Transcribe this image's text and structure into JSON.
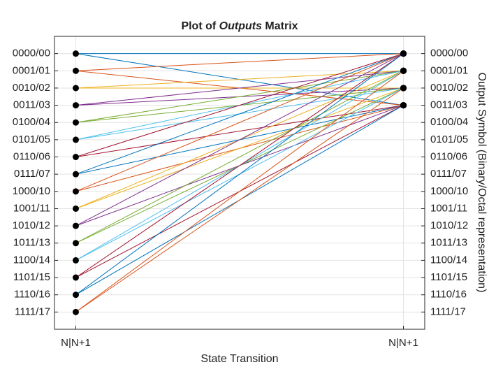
{
  "chart_data": {
    "type": "transition",
    "title": [
      "Plot of ",
      "Outputs",
      " Matrix"
    ],
    "xlabel": "State Transition",
    "y2label": "Output Symbol (Binary/Octal representation)",
    "xlim": [
      0.935,
      2.065
    ],
    "xticks": [
      {
        "value": 1,
        "label": "N|N+1"
      },
      {
        "value": 2,
        "label": "N|N+1"
      }
    ],
    "ylim": [
      -1,
      16
    ],
    "y_reversed": true,
    "yticks": [
      {
        "value": 0,
        "label": "0000/00"
      },
      {
        "value": 1,
        "label": "0001/01"
      },
      {
        "value": 2,
        "label": "0010/02"
      },
      {
        "value": 3,
        "label": "0011/03"
      },
      {
        "value": 4,
        "label": "0100/04"
      },
      {
        "value": 5,
        "label": "0101/05"
      },
      {
        "value": 6,
        "label": "0110/06"
      },
      {
        "value": 7,
        "label": "0111/07"
      },
      {
        "value": 8,
        "label": "1000/10"
      },
      {
        "value": 9,
        "label": "1001/11"
      },
      {
        "value": 10,
        "label": "1010/12"
      },
      {
        "value": 11,
        "label": "1011/13"
      },
      {
        "value": 12,
        "label": "1100/14"
      },
      {
        "value": 13,
        "label": "1101/15"
      },
      {
        "value": 14,
        "label": "1110/16"
      },
      {
        "value": 15,
        "label": "1111/17"
      }
    ],
    "y2lim": [
      -1,
      16
    ],
    "y2ticks": [
      {
        "value": 0,
        "label": "0000/00"
      },
      {
        "value": 1,
        "label": "0001/01"
      },
      {
        "value": 2,
        "label": "0010/02"
      },
      {
        "value": 3,
        "label": "0011/03"
      },
      {
        "value": 4,
        "label": "0100/04"
      },
      {
        "value": 5,
        "label": "0101/05"
      },
      {
        "value": 6,
        "label": "0110/06"
      },
      {
        "value": 7,
        "label": "0111/07"
      },
      {
        "value": 8,
        "label": "1000/10"
      },
      {
        "value": 9,
        "label": "1001/11"
      },
      {
        "value": 10,
        "label": "1010/12"
      },
      {
        "value": 11,
        "label": "1011/13"
      },
      {
        "value": 12,
        "label": "1100/14"
      },
      {
        "value": 13,
        "label": "1101/15"
      },
      {
        "value": 14,
        "label": "1110/16"
      },
      {
        "value": 15,
        "label": "1111/17"
      }
    ],
    "grid": true,
    "marker_color": "#000000",
    "series": [
      {
        "color": "#0072BD",
        "source": 0,
        "targets": [
          0,
          3
        ]
      },
      {
        "color": "#D95319",
        "source": 1,
        "targets": [
          0,
          3
        ]
      },
      {
        "color": "#EDB120",
        "source": 2,
        "targets": [
          1,
          2
        ]
      },
      {
        "color": "#7E2F8E",
        "source": 3,
        "targets": [
          1,
          2
        ]
      },
      {
        "color": "#77AC30",
        "source": 4,
        "targets": [
          1,
          2
        ]
      },
      {
        "color": "#4DBEEE",
        "source": 5,
        "targets": [
          1,
          2
        ]
      },
      {
        "color": "#A2142F",
        "source": 6,
        "targets": [
          0,
          3
        ]
      },
      {
        "color": "#0072BD",
        "source": 7,
        "targets": [
          0,
          3
        ]
      },
      {
        "color": "#D95319",
        "source": 8,
        "targets": [
          3,
          0
        ]
      },
      {
        "color": "#EDB120",
        "source": 9,
        "targets": [
          2,
          1
        ]
      },
      {
        "color": "#7E2F8E",
        "source": 10,
        "targets": [
          0,
          3
        ]
      },
      {
        "color": "#77AC30",
        "source": 11,
        "targets": [
          2,
          1
        ]
      },
      {
        "color": "#4DBEEE",
        "source": 12,
        "targets": [
          1,
          2
        ]
      },
      {
        "color": "#A2142F",
        "source": 13,
        "targets": [
          0,
          3
        ]
      },
      {
        "color": "#0072BD",
        "source": 14,
        "targets": [
          3,
          0
        ]
      },
      {
        "color": "#D95319",
        "source": 15,
        "targets": [
          2,
          1
        ]
      }
    ]
  }
}
